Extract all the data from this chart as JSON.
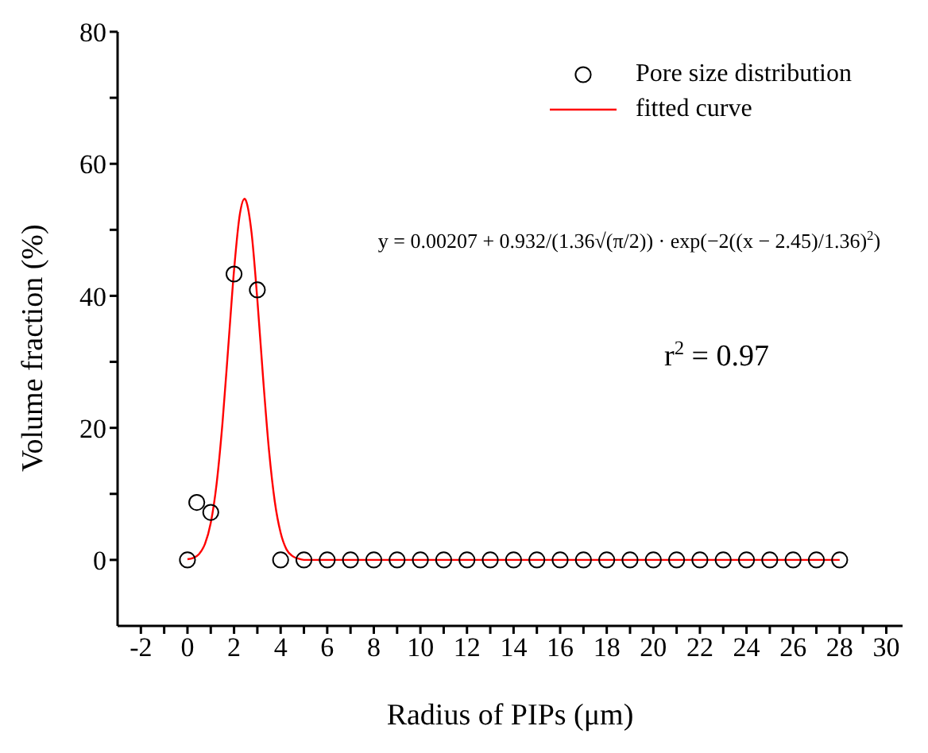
{
  "chart_data": {
    "type": "scatter",
    "xlabel": "Radius of PIPs (μm)",
    "ylabel": "Volume fraction (%)",
    "xlim": [
      -3,
      30.7
    ],
    "ylim": [
      -10,
      80
    ],
    "xticks": [
      -2,
      {
        "value": -1,
        "label": null
      },
      0,
      {
        "value": 1,
        "label": null
      },
      2,
      {
        "value": 3,
        "label": null
      },
      4,
      {
        "value": 5,
        "label": null
      },
      6,
      {
        "value": 7,
        "label": null
      },
      8,
      {
        "value": 9,
        "label": null
      },
      10,
      {
        "value": 11,
        "label": null
      },
      12,
      {
        "value": 13,
        "label": null
      },
      14,
      {
        "value": 15,
        "label": null
      },
      16,
      {
        "value": 17,
        "label": null
      },
      18,
      {
        "value": 19,
        "label": null
      },
      20,
      {
        "value": 21,
        "label": null
      },
      22,
      {
        "value": 23,
        "label": null
      },
      24,
      {
        "value": 25,
        "label": null
      },
      26,
      {
        "value": 27,
        "label": null
      },
      28,
      {
        "value": 29,
        "label": null
      },
      30
    ],
    "yticks": [
      0,
      {
        "value": 10,
        "label": null
      },
      20,
      {
        "value": 30,
        "label": null
      },
      40,
      {
        "value": 50,
        "label": null
      },
      60,
      {
        "value": 70,
        "label": null
      },
      80
    ],
    "grid": false,
    "legend": "top right",
    "marker": "circle",
    "annotations": [
      "y = 0.00207 + 0.932/(1.36√(π/2)) · exp(−2((x − 2.45)/1.36)$^{2}$)",
      "r$^{2}$ = 0.97"
    ],
    "series": [
      {
        "name": "Pore size distribution",
        "color": "#000000",
        "x": [
          0,
          0.4,
          1,
          2,
          3,
          4,
          5,
          6,
          7,
          8,
          9,
          10,
          11,
          12,
          13,
          14,
          15,
          16,
          17,
          18,
          19,
          20,
          21,
          22,
          23,
          24,
          25,
          26,
          27,
          28
        ],
        "values": [
          0,
          8.7,
          7.2,
          43.3,
          40.9,
          0,
          0,
          0,
          0,
          0,
          0,
          0,
          0,
          0,
          0,
          0,
          0,
          0,
          0,
          0,
          0,
          0,
          0,
          0,
          0,
          0,
          0,
          0,
          0,
          0
        ]
      },
      {
        "name": "fitted curve",
        "type": "line",
        "color": "#ff0000",
        "marker": "none",
        "x": [
          0,
          0.25,
          0.5,
          0.75,
          1,
          1.25,
          1.5,
          1.75,
          2,
          2.25,
          2.45,
          2.5,
          2.75,
          3,
          3.25,
          3.5,
          3.75,
          4,
          4.25,
          4.5,
          4.75,
          5,
          28
        ],
        "values": [
          0.1,
          0.3,
          0.9,
          2.4,
          5.6,
          11.5,
          20.6,
          32.2,
          43.9,
          52.4,
          54.7,
          54.5,
          49.6,
          39.4,
          27.4,
          16.6,
          8.8,
          4.1,
          1.6,
          0.6,
          0.2,
          0,
          0
        ]
      }
    ]
  }
}
